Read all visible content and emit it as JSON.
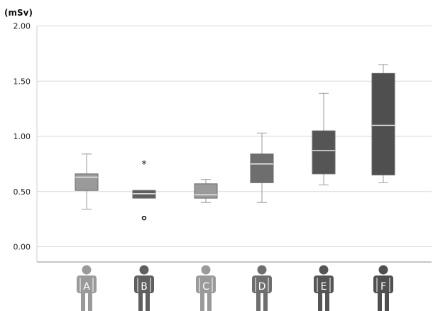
{
  "chart_data": {
    "type": "box",
    "ylabel": "(mSv)",
    "ylim": [
      0,
      2
    ],
    "yticks": [
      "0.00",
      "0.50",
      "1.00",
      "1.50",
      "2.00"
    ],
    "tick_values": [
      0,
      0.5,
      1,
      1.5,
      2
    ],
    "grid": true,
    "categories": [
      "A",
      "B",
      "C",
      "D",
      "E",
      "F"
    ],
    "boxes": [
      {
        "label": "A",
        "whisker_low": 0.34,
        "q1": 0.51,
        "median": 0.63,
        "q3": 0.66,
        "whisker_high": 0.84,
        "color": "#9a9a9a",
        "outliers": [],
        "extremes": []
      },
      {
        "label": "B",
        "whisker_low": 0.44,
        "q1": 0.44,
        "median": 0.48,
        "q3": 0.51,
        "whisker_high": 0.51,
        "color": "#5f5f5f",
        "outliers": [
          0.26
        ],
        "extremes": [
          0.75
        ]
      },
      {
        "label": "C",
        "whisker_low": 0.4,
        "q1": 0.44,
        "median": 0.47,
        "q3": 0.57,
        "whisker_high": 0.61,
        "color": "#9a9a9a",
        "outliers": [],
        "extremes": []
      },
      {
        "label": "D",
        "whisker_low": 0.4,
        "q1": 0.58,
        "median": 0.75,
        "q3": 0.84,
        "whisker_high": 1.03,
        "color": "#6e6e6e",
        "outliers": [],
        "extremes": []
      },
      {
        "label": "E",
        "whisker_low": 0.56,
        "q1": 0.66,
        "median": 0.87,
        "q3": 1.05,
        "whisker_high": 1.39,
        "color": "#555555",
        "outliers": [],
        "extremes": []
      },
      {
        "label": "F",
        "whisker_low": 0.58,
        "q1": 0.65,
        "median": 1.1,
        "q3": 1.57,
        "whisker_high": 1.65,
        "color": "#4f4f4f",
        "outliers": [],
        "extremes": []
      }
    ],
    "extreme_marker": "*"
  }
}
